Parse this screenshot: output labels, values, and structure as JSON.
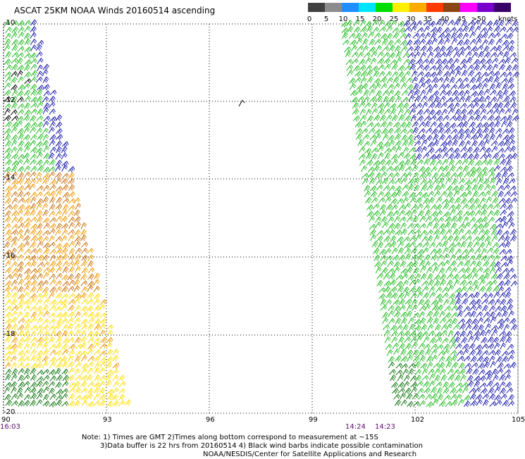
{
  "title": "ASCAT 25KM NOAA Winds 20160514 ascending",
  "legend": {
    "ticks": [
      "0",
      "5",
      "10",
      "15",
      "20",
      "25",
      "30",
      "35",
      "40",
      "45",
      ">50"
    ],
    "unit": "knots",
    "colors": [
      "#404040",
      "#8c8c8c",
      "#1f8fff",
      "#00e5ff",
      "#00dd00",
      "#ffef00",
      "#ffaa00",
      "#ff3b00",
      "#8b4513",
      "#ff00ff",
      "#7a00cc",
      "#3a006a"
    ]
  },
  "map": {
    "lat_labels": [
      "-10",
      "-12",
      "-14",
      "-16",
      "-18",
      "-20"
    ],
    "lon_labels": [
      "90",
      "93",
      "96",
      "99",
      "102",
      "105"
    ],
    "swath_times": [
      "16:03",
      "14:24",
      "14:23"
    ]
  },
  "notes": [
    "Note: 1) Times are GMT 2)Times along bottom correspond to measurement at ~15S",
    "3)Data buffer is 22 hrs from 20160514 4) Black wind barbs indicate possible contamination",
    "NOAA/NESDIS/Center for Satellite Applications and Research"
  ],
  "colors": {
    "grid": "#000000",
    "black_barbs": "#000000",
    "green_barbs": "#22bb22",
    "dark_green_barbs": "#117711",
    "blue_barbs": "#1a1aaa",
    "orange_barbs": "#ee9900",
    "brown_barbs": "#c8720e",
    "yellow_barbs": "#ffdd00",
    "time_text": "#5a0a6e"
  }
}
